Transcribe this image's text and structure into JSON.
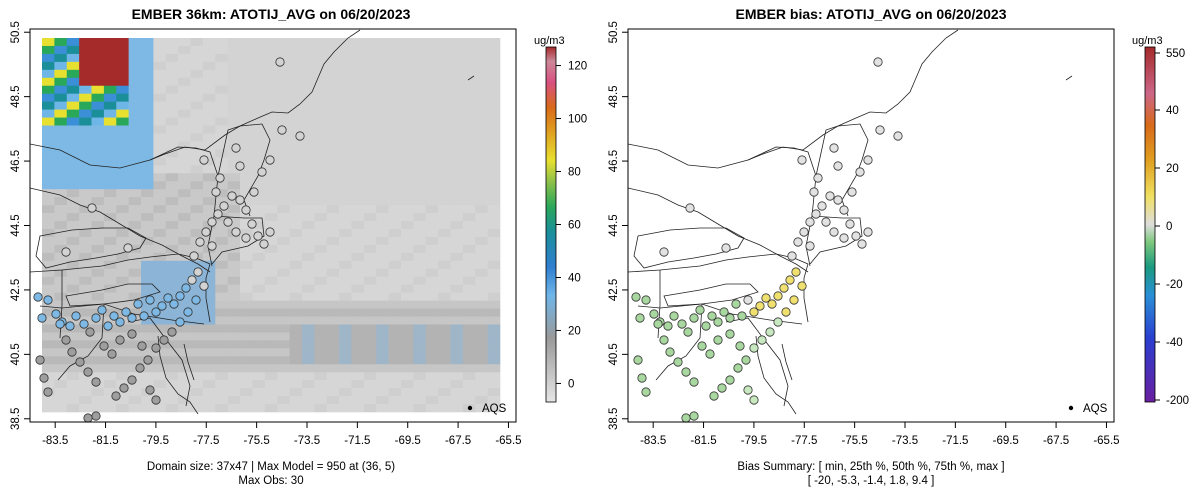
{
  "chart_data": [
    {
      "type": "heatmap",
      "title": "EMBER 36km: ATOTIJ_AVG on 06/20/2023",
      "x_ticks": [
        "-83.5",
        "-81.5",
        "-79.5",
        "-77.5",
        "-75.5",
        "-73.5",
        "-71.5",
        "-69.5",
        "-67.5",
        "-65.5"
      ],
      "y_ticks": [
        "38.5",
        "40.5",
        "42.5",
        "44.5",
        "46.5",
        "48.5",
        "50.5"
      ],
      "xlim": [
        -84.5,
        -65.2
      ],
      "ylim": [
        38.4,
        50.6
      ],
      "legend_label": "AQS",
      "colorbar_units": "ug/m3",
      "colorbar_ticks": [
        "0",
        "20",
        "40",
        "60",
        "80",
        "100",
        "120"
      ],
      "colorbar_range": [
        -7,
        127
      ],
      "footer_line1": "Domain size: 37x47 | Max Model = 950 at (36, 5)",
      "footer_line2": "Max Obs: 30"
    },
    {
      "type": "scatter",
      "title": "EMBER bias: ATOTIJ_AVG on 06/20/2023",
      "x_ticks": [
        "-83.5",
        "-81.5",
        "-79.5",
        "-77.5",
        "-75.5",
        "-73.5",
        "-71.5",
        "-69.5",
        "-67.5",
        "-65.5"
      ],
      "y_ticks": [
        "38.5",
        "40.5",
        "42.5",
        "44.5",
        "46.5",
        "48.5",
        "50.5"
      ],
      "xlim": [
        -84.5,
        -65.2
      ],
      "ylim": [
        38.4,
        50.6
      ],
      "legend_label": "AQS",
      "colorbar_units": "ug/m3",
      "colorbar_ticks": [
        "550",
        "40",
        "20",
        "0",
        "-20",
        "-40",
        "-200"
      ],
      "footer_line1": "Bias Summary: [ min, 25th %, 50th %, 75th %, max ]",
      "footer_line2": "[ -20,   -5.3,   -1.4,   1.8,   9.4 ]"
    }
  ],
  "colors": {
    "gray_light": "#d3d3d3",
    "gray_mid": "#bdbdbd",
    "gray_dark": "#9e9e9e",
    "blue_light": "#6fb6e8",
    "blue": "#3a8fd6",
    "red": "#a52a2a"
  }
}
